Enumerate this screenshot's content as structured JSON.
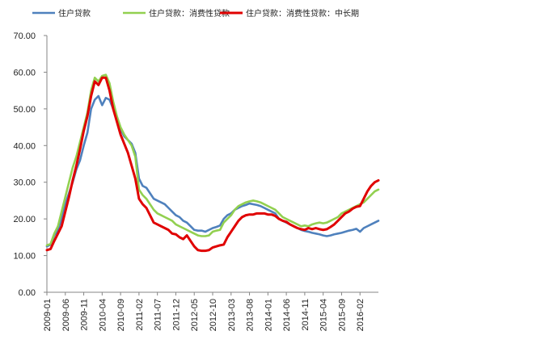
{
  "chart_data": {
    "type": "line",
    "title": "",
    "xlabel": "",
    "ylabel": "",
    "ylim": [
      0,
      70
    ],
    "ytick_step": 10,
    "ytick_decimals": 2,
    "grid": false,
    "legend_position": "top-left",
    "x_start": "2009-01",
    "x_tick_labels": [
      "2009-01",
      "2009-06",
      "2009-11",
      "2010-04",
      "2010-09",
      "2011-02",
      "2011-07",
      "2011-12",
      "2012-05",
      "2012-10",
      "2013-03",
      "2013-08",
      "2014-01",
      "2014-06",
      "2014-11",
      "2015-04",
      "2015-09",
      "2016-02"
    ],
    "x_tick_every": 5,
    "series": [
      {
        "name": "住户贷款",
        "color": "#4f81bd",
        "values": [
          12.5,
          13.0,
          15.5,
          17.0,
          20.0,
          24.0,
          27.0,
          30.0,
          33.5,
          36.0,
          40.0,
          43.5,
          50.0,
          52.5,
          53.5,
          51.0,
          53.0,
          52.5,
          50.0,
          47.0,
          44.5,
          42.5,
          41.5,
          40.5,
          38.0,
          31.0,
          29.0,
          28.5,
          27.0,
          25.5,
          25.0,
          24.5,
          24.0,
          23.0,
          22.0,
          21.0,
          20.5,
          19.5,
          19.0,
          18.0,
          17.0,
          16.8,
          16.8,
          16.5,
          17.0,
          17.5,
          17.8,
          18.2,
          20.0,
          21.0,
          21.5,
          22.5,
          23.0,
          23.5,
          23.8,
          24.2,
          24.0,
          23.8,
          23.5,
          23.0,
          22.5,
          22.0,
          21.5,
          20.0,
          19.5,
          19.0,
          18.5,
          18.0,
          17.5,
          17.0,
          16.7,
          16.5,
          16.2,
          16.0,
          15.8,
          15.5,
          15.3,
          15.5,
          15.8,
          16.0,
          16.2,
          16.5,
          16.8,
          17.0,
          17.3,
          16.5,
          17.5,
          18.0,
          18.5,
          19.0,
          19.5
        ]
      },
      {
        "name": "住户贷款：消费性贷款",
        "color": "#92d050",
        "values": [
          12.8,
          13.2,
          16.0,
          18.0,
          22.0,
          26.0,
          30.0,
          34.0,
          37.0,
          41.0,
          45.0,
          49.0,
          55.0,
          58.5,
          57.5,
          59.0,
          59.3,
          57.0,
          52.0,
          48.0,
          45.0,
          43.0,
          41.5,
          40.0,
          37.0,
          28.0,
          26.5,
          25.5,
          24.0,
          22.5,
          21.5,
          21.0,
          20.5,
          20.0,
          19.5,
          18.5,
          18.0,
          17.5,
          17.0,
          16.5,
          16.0,
          15.5,
          15.3,
          15.3,
          15.5,
          16.5,
          16.8,
          17.0,
          19.0,
          20.0,
          21.0,
          22.5,
          23.5,
          24.0,
          24.5,
          24.8,
          25.0,
          24.8,
          24.5,
          24.0,
          23.5,
          23.0,
          22.5,
          21.5,
          20.5,
          20.0,
          19.5,
          19.0,
          18.5,
          18.0,
          18.2,
          18.0,
          18.5,
          18.8,
          19.0,
          18.8,
          19.0,
          19.5,
          20.0,
          20.5,
          21.5,
          22.0,
          22.5,
          23.0,
          23.5,
          24.0,
          24.5,
          25.5,
          26.5,
          27.5,
          28.0
        ]
      },
      {
        "name": "住户贷款：消费性贷款：中长期",
        "color": "#e00000",
        "values": [
          11.5,
          11.8,
          14.0,
          16.0,
          18.0,
          22.0,
          26.0,
          30.5,
          34.5,
          39.0,
          44.0,
          48.0,
          53.5,
          57.5,
          56.5,
          58.5,
          58.5,
          55.0,
          50.0,
          46.5,
          43.0,
          40.5,
          38.0,
          34.5,
          31.0,
          25.5,
          24.0,
          23.0,
          21.0,
          19.0,
          18.5,
          18.0,
          17.5,
          17.0,
          16.0,
          15.8,
          15.0,
          14.5,
          15.5,
          14.0,
          12.5,
          11.5,
          11.3,
          11.3,
          11.5,
          12.2,
          12.5,
          12.8,
          13.0,
          15.0,
          16.5,
          18.0,
          19.5,
          20.5,
          21.0,
          21.2,
          21.2,
          21.5,
          21.5,
          21.5,
          21.2,
          21.2,
          20.8,
          20.0,
          19.5,
          19.2,
          18.5,
          18.0,
          17.5,
          17.2,
          17.0,
          17.5,
          17.2,
          17.5,
          17.2,
          17.0,
          17.2,
          17.8,
          18.5,
          19.5,
          20.5,
          21.5,
          22.0,
          22.8,
          23.3,
          23.5,
          25.5,
          27.5,
          29.0,
          30.0,
          30.5
        ]
      }
    ]
  }
}
